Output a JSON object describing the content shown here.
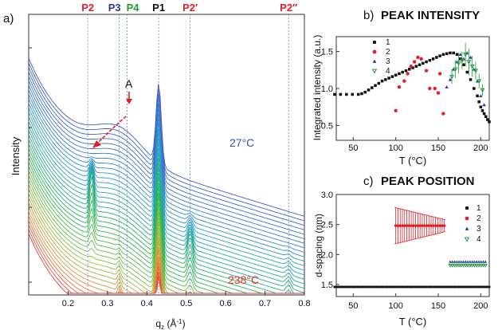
{
  "panel_a": {
    "letter": "a)",
    "xlabel": "q",
    "xlabel_sub": "z",
    "xlabel_units": " (Å",
    "xlabel_exp": "-1",
    "xlabel_close": ")",
    "ylabel": "Intensity",
    "temp_top": "27°C",
    "temp_bottom": "238°C",
    "annotation": "A"
  },
  "panel_b": {
    "letter": "b)",
    "title": "PEAK INTENSITY",
    "ylabel": "Integrated intensity (a.u.)",
    "xlabel": "T (°C)"
  },
  "panel_c": {
    "letter": "c)",
    "title": "PEAK POSITION",
    "ylabel": "d-spacing (nm)",
    "xlabel": "T (°C)"
  },
  "chart_data": [
    {
      "type": "line",
      "xlabel": "qz (Å-1)",
      "ylabel": "Intensity",
      "xlim": [
        0.1,
        0.8
      ],
      "x_ticks": [
        "0.2",
        "0.3",
        "0.4",
        "0.5",
        "0.6",
        "0.7",
        "0.8"
      ],
      "peaks": [
        {
          "label": "P2",
          "q": 0.25,
          "color": "#e0202a"
        },
        {
          "label": "P3",
          "q": 0.33,
          "color": "#2a3b9c"
        },
        {
          "label": "P4",
          "q": 0.35,
          "color": "#1f9a3a"
        },
        {
          "label": "P1",
          "q": 0.43,
          "color": "#111111"
        },
        {
          "label": "P2′",
          "q": 0.51,
          "color": "#e0202a"
        },
        {
          "label": "P2′′",
          "q": 0.76,
          "color": "#e0202a"
        }
      ],
      "temperature_range": [
        "27°C",
        "238°C"
      ],
      "series_count": 40
    },
    {
      "type": "scatter",
      "title": "PEAK INTENSITY",
      "xlabel": "T (°C)",
      "ylabel": "Integrated intensity (a.u.)",
      "xlim": [
        30,
        210
      ],
      "ylim": [
        0.3,
        1.7
      ],
      "x_ticks": [
        "50",
        "100",
        "150",
        "200"
      ],
      "y_ticks": [
        "0.5",
        "1.0",
        "1.5"
      ],
      "legend_position": "top-left",
      "series": [
        {
          "name": "1",
          "color": "#111111",
          "marker": "square",
          "x": [
            28,
            35,
            42,
            49,
            56,
            60,
            64,
            68,
            72,
            76,
            80,
            84,
            88,
            92,
            96,
            100,
            104,
            108,
            112,
            116,
            120,
            124,
            128,
            132,
            136,
            140,
            144,
            148,
            152,
            156,
            160,
            164,
            168,
            172,
            176,
            180,
            184,
            188,
            192,
            196,
            198,
            200,
            202,
            204,
            206,
            208,
            210
          ],
          "y": [
            0.92,
            0.92,
            0.92,
            0.92,
            0.92,
            0.93,
            0.95,
            0.98,
            1.01,
            1.04,
            1.07,
            1.1,
            1.12,
            1.14,
            1.16,
            1.18,
            1.2,
            1.22,
            1.24,
            1.26,
            1.28,
            1.3,
            1.32,
            1.34,
            1.36,
            1.38,
            1.4,
            1.42,
            1.44,
            1.46,
            1.47,
            1.48,
            1.48,
            1.46,
            1.4,
            1.32,
            1.22,
            1.12,
            1.0,
            0.9,
            0.82,
            0.75,
            0.7,
            0.66,
            0.62,
            0.58,
            0.55
          ]
        },
        {
          "name": "2",
          "color": "#e0202a",
          "marker": "circle",
          "x": [
            100,
            104,
            110,
            114,
            118,
            122,
            126,
            130,
            136,
            140,
            146,
            150,
            152,
            156
          ],
          "y": [
            0.7,
            1.02,
            1.1,
            1.2,
            1.3,
            1.36,
            1.42,
            1.4,
            1.24,
            1.0,
            1.0,
            0.94,
            1.2,
            0.66
          ]
        },
        {
          "name": "3",
          "color": "#2a3b9c",
          "marker": "triangle",
          "x": [
            160,
            164,
            168,
            172,
            176,
            180,
            184,
            188,
            192,
            196,
            200,
            204
          ],
          "y": [
            1.02,
            1.12,
            1.26,
            1.36,
            1.46,
            1.4,
            1.48,
            1.42,
            1.26,
            1.1,
            0.9,
            0.78
          ]
        },
        {
          "name": "4",
          "color": "#1f9a3a",
          "marker": "triangle-down",
          "x": [
            166,
            170,
            174,
            178,
            182,
            186,
            190,
            194,
            198,
            202
          ],
          "y": [
            1.16,
            1.26,
            1.34,
            1.38,
            1.46,
            1.36,
            1.3,
            1.24,
            1.1,
            0.98
          ],
          "err": [
            0.1,
            0.12,
            0.14,
            0.12,
            0.16,
            0.18,
            0.14,
            0.12,
            0.1,
            0.08
          ]
        }
      ]
    },
    {
      "type": "scatter",
      "title": "PEAK POSITION",
      "xlabel": "T (°C)",
      "ylabel": "d-spacing (nm)",
      "xlim": [
        30,
        210
      ],
      "ylim": [
        1.3,
        3.0
      ],
      "x_ticks": [
        "50",
        "100",
        "150",
        "200"
      ],
      "y_ticks": [
        "1.5",
        "2.0",
        "2.5",
        "3.0"
      ],
      "legend_position": "right",
      "series": [
        {
          "name": "1",
          "color": "#111111",
          "marker": "square",
          "x_range": [
            28,
            212
          ],
          "value": 1.46
        },
        {
          "name": "2",
          "color": "#e0202a",
          "marker": "circle",
          "x_range": [
            100,
            158
          ],
          "value": 2.48,
          "err_start": 0.3,
          "err_end": 0.1
        },
        {
          "name": "3",
          "color": "#2a3b9c",
          "marker": "triangle",
          "x_range": [
            164,
            208
          ],
          "value": 1.88
        },
        {
          "name": "4",
          "color": "#1f9a3a",
          "marker": "triangle-down",
          "x_range": [
            164,
            208
          ],
          "value": 1.82
        }
      ]
    }
  ]
}
